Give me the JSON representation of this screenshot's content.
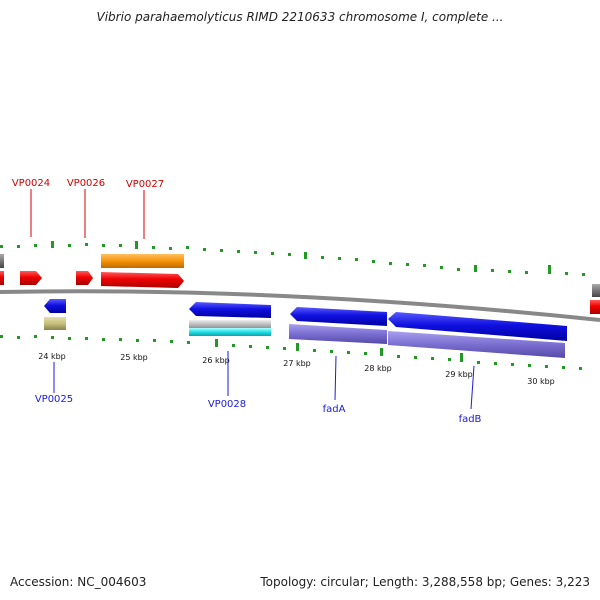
{
  "title": "Vibrio parahaemolyticus RIMD 2210633 chromosome I, complete ...",
  "footer": {
    "accession": "Accession: NC_004603",
    "topology": "Topology: circular; Length: 3,288,558 bp; Genes: 3,223"
  },
  "colors": {
    "forward_gene": "#ee0000",
    "reverse_gene": "#1212e8",
    "forward_label": "#d40000",
    "reverse_label": "#1a1ae0",
    "gc_tick": "#229922",
    "backbone": "#888888",
    "orange_feature": "#f5940a",
    "olive_feature": "#c8c07a",
    "purple_feature": "#7a6ed0",
    "cyan_feature": "#22e0e8",
    "grey_feature": "#bbbbbb"
  },
  "scale_labels": [
    "24 kbp",
    "25 kbp",
    "26 kbp",
    "27 kbp",
    "28 kbp",
    "29 kbp",
    "30 kbp"
  ],
  "gene_labels_forward": [
    "VP0024",
    "VP0026",
    "VP0027"
  ],
  "gene_labels_reverse": [
    "VP0025",
    "VP0028",
    "fadA",
    "fadB"
  ]
}
